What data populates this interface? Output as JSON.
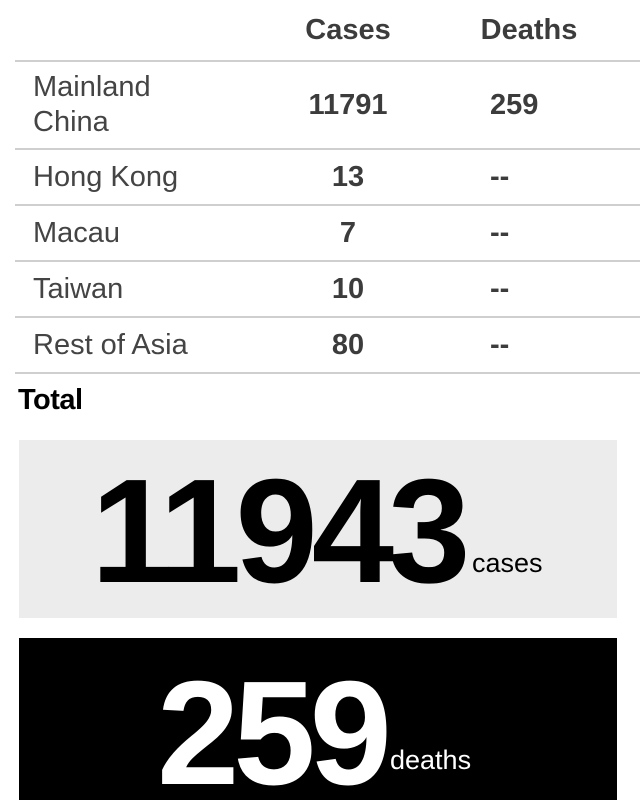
{
  "table": {
    "headers": {
      "region": "",
      "cases": "Cases",
      "deaths": "Deaths"
    },
    "rows": [
      {
        "region_line1": "Mainland",
        "region_line2": "China",
        "cases": "11791",
        "deaths": "259"
      },
      {
        "region": "Hong Kong",
        "cases": "13",
        "deaths": "--"
      },
      {
        "region": "Macau",
        "cases": "7",
        "deaths": "--"
      },
      {
        "region": "Taiwan",
        "cases": "10",
        "deaths": "--"
      },
      {
        "region": "Rest of Asia",
        "cases": "80",
        "deaths": "--"
      }
    ]
  },
  "total": {
    "label": "Total",
    "cases_value": "11943",
    "cases_unit": "cases",
    "deaths_value": "259",
    "deaths_unit": "deaths"
  },
  "colors": {
    "cases_card_bg": "#ececec",
    "deaths_card_bg": "#000000",
    "divider": "#cfcfcf"
  }
}
